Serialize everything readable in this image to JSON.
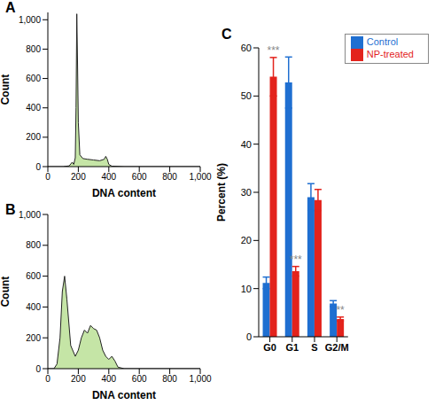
{
  "chart_data": [
    {
      "type": "area",
      "title": "A",
      "x_label": "DNA content",
      "y_label": "Count",
      "color": "#9fd46a",
      "x": [
        0,
        100,
        140,
        160,
        170,
        180,
        185,
        190,
        195,
        200,
        210,
        230,
        260,
        300,
        340,
        370,
        380,
        390,
        400,
        420,
        500,
        1000
      ],
      "values": [
        0,
        0,
        5,
        30,
        15,
        60,
        400,
        1040,
        700,
        300,
        80,
        55,
        50,
        45,
        40,
        50,
        70,
        50,
        15,
        3,
        0,
        0
      ],
      "xlim": [
        0,
        1000
      ],
      "xticks": [
        0,
        200,
        400,
        600,
        800,
        {
          "value": 1000,
          "label": "1,000"
        }
      ],
      "ylim": [
        0,
        1050
      ],
      "yticks": [
        0,
        200,
        400,
        600,
        800,
        {
          "value": 1000,
          "label": "1,000"
        }
      ]
    },
    {
      "type": "area",
      "title": "B",
      "x_label": "DNA content",
      "y_label": "Count",
      "color": "#9fd46a",
      "x": [
        0,
        40,
        60,
        80,
        95,
        110,
        125,
        150,
        180,
        200,
        220,
        240,
        260,
        280,
        300,
        320,
        340,
        360,
        380,
        400,
        420,
        440,
        460,
        500,
        1000
      ],
      "values": [
        0,
        0,
        30,
        200,
        500,
        600,
        450,
        150,
        80,
        120,
        200,
        250,
        230,
        280,
        260,
        250,
        200,
        120,
        80,
        60,
        80,
        50,
        10,
        0,
        0
      ],
      "xlim": [
        0,
        1000
      ],
      "xticks": [
        0,
        200,
        400,
        600,
        800,
        {
          "value": 1000,
          "label": "1,000"
        }
      ],
      "ylim": [
        0,
        1000
      ],
      "yticks": [
        0,
        200,
        400,
        600,
        800,
        {
          "value": 1000,
          "label": "1,000"
        }
      ]
    },
    {
      "type": "bar",
      "title": "C",
      "y_label": "Percent (%)",
      "categories": [
        "G0",
        "G1",
        "S",
        "G2/M"
      ],
      "series": [
        {
          "name": "Control",
          "color": "#1f6fd1",
          "values": [
            11.2,
            52.8,
            29,
            6.9
          ],
          "errors": [
            1.2,
            5.3,
            2.8,
            0.6
          ]
        },
        {
          "name": "NP-treated",
          "color": "#e3231c",
          "values": [
            54,
            13.6,
            28.4,
            3.7
          ],
          "errors": [
            4,
            1.0,
            2.2,
            0.4
          ],
          "annotations": [
            "***",
            "***",
            null,
            "**"
          ]
        }
      ],
      "ylim": [
        0,
        60
      ],
      "yticks": [
        0,
        10,
        20,
        30,
        40,
        50,
        60
      ],
      "legend": "upper right"
    }
  ]
}
